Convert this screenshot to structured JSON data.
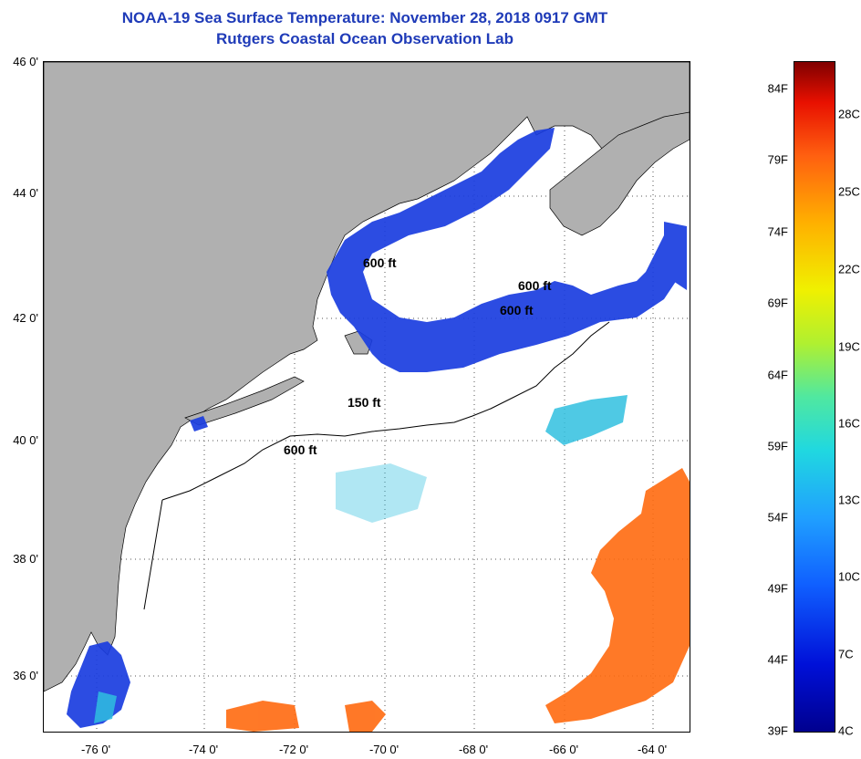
{
  "title": {
    "line1": "NOAA-19 Sea Surface Temperature:  November 28, 2018 0917 GMT",
    "line2": "Rutgers Coastal Ocean Observation Lab"
  },
  "map": {
    "lat_labels": [
      "46 0'",
      "44 0'",
      "42 0'",
      "40 0'",
      "38 0'",
      "36 0'"
    ],
    "lon_labels": [
      "-76 0'",
      "-74 0'",
      "-72 0'",
      "-70 0'",
      "-68 0'",
      "-66 0'",
      "-64 0'"
    ],
    "isobath_labels": [
      "600 ft",
      "600 ft",
      "600 ft",
      "150 ft",
      "600 ft"
    ],
    "colors": {
      "land": "#b0b0b0",
      "cold": "#1a3de0",
      "warm": "#ff6a10",
      "mid": "#30c0e0"
    }
  },
  "colorbar": {
    "fahrenheit": [
      "84F",
      "79F",
      "74F",
      "69F",
      "64F",
      "59F",
      "54F",
      "49F",
      "44F",
      "39F"
    ],
    "celsius": [
      "28C",
      "25C",
      "22C",
      "19C",
      "16C",
      "13C",
      "10C",
      "7C",
      "4C"
    ]
  }
}
